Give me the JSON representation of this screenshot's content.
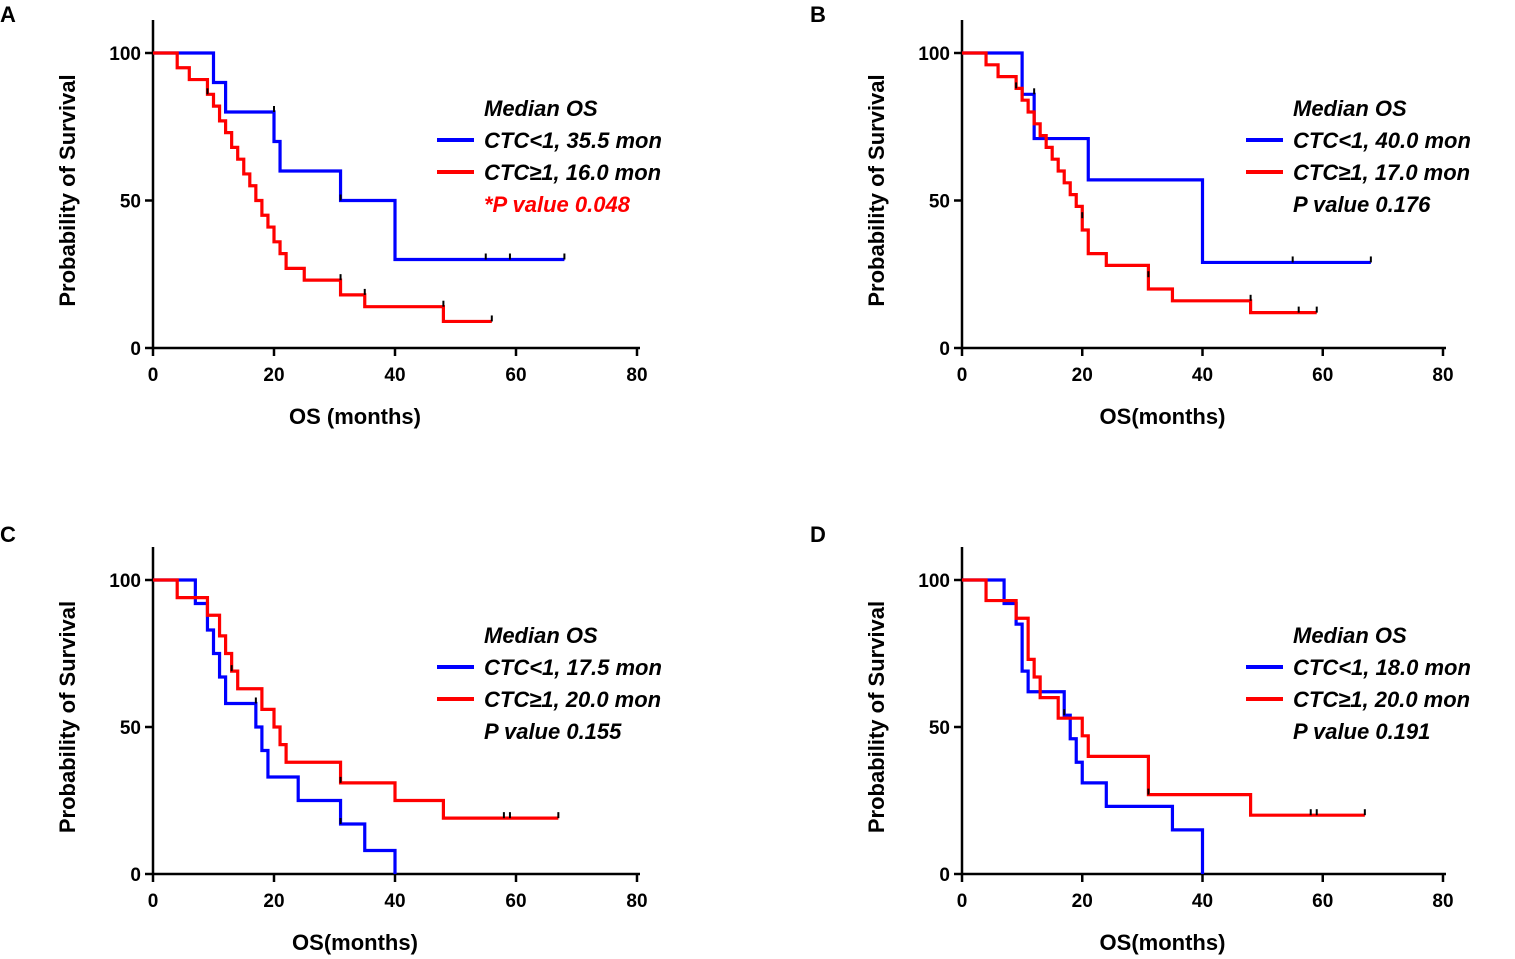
{
  "chart_data": [
    {
      "panel": "A",
      "type": "line",
      "subtype": "kaplan-meier",
      "xlabel": "OS (months)",
      "ylabel": "Probability of Survival",
      "xlim": [
        0,
        80
      ],
      "ylim": [
        0,
        100
      ],
      "x_ticks": [
        "0",
        "20",
        "40",
        "60",
        "80"
      ],
      "y_ticks": [
        "0",
        "50",
        "100"
      ],
      "legend": {
        "title": "Median OS",
        "entries": [
          "CTC<1, 35.5 mon",
          "CTC≥1, 16.0 mon"
        ],
        "p_value": "*P value 0.048",
        "p_value_color": "#ff0000"
      },
      "series": [
        {
          "name": "CTC<1",
          "color": "#0000ff",
          "steps": [
            [
              0,
              100
            ],
            [
              10,
              90
            ],
            [
              12,
              80
            ],
            [
              20,
              70
            ],
            [
              21,
              60
            ],
            [
              31,
              50
            ],
            [
              40,
              30
            ],
            [
              68,
              30
            ]
          ],
          "censor": [
            [
              20,
              80
            ],
            [
              31,
              50
            ],
            [
              55,
              30
            ],
            [
              59,
              30
            ],
            [
              68,
              30
            ]
          ]
        },
        {
          "name": "CTC≥1",
          "color": "#ff0000",
          "steps": [
            [
              0,
              100
            ],
            [
              4,
              95
            ],
            [
              6,
              91
            ],
            [
              9,
              86
            ],
            [
              10,
              82
            ],
            [
              11,
              77
            ],
            [
              12,
              73
            ],
            [
              13,
              68
            ],
            [
              14,
              64
            ],
            [
              15,
              59
            ],
            [
              16,
              55
            ],
            [
              17,
              50
            ],
            [
              18,
              45
            ],
            [
              19,
              41
            ],
            [
              20,
              36
            ],
            [
              21,
              32
            ],
            [
              22,
              27
            ],
            [
              25,
              23
            ],
            [
              31,
              18
            ],
            [
              35,
              14
            ],
            [
              48,
              9
            ],
            [
              56,
              9
            ]
          ],
          "censor": [
            [
              9,
              86
            ],
            [
              31,
              23
            ],
            [
              35,
              18
            ],
            [
              48,
              14
            ],
            [
              56,
              9
            ]
          ]
        }
      ]
    },
    {
      "panel": "B",
      "type": "line",
      "subtype": "kaplan-meier",
      "xlabel": "OS(months)",
      "ylabel": "Probability of Survival",
      "xlim": [
        0,
        80
      ],
      "ylim": [
        0,
        100
      ],
      "x_ticks": [
        "0",
        "20",
        "40",
        "60",
        "80"
      ],
      "y_ticks": [
        "0",
        "50",
        "100"
      ],
      "legend": {
        "title": "Median OS",
        "entries": [
          "CTC<1, 40.0 mon",
          "CTC≥1, 17.0 mon"
        ],
        "p_value": "P value 0.176",
        "p_value_color": "#000000"
      },
      "series": [
        {
          "name": "CTC<1",
          "color": "#0000ff",
          "steps": [
            [
              0,
              100
            ],
            [
              10,
              86
            ],
            [
              12,
              71
            ],
            [
              21,
              57
            ],
            [
              40,
              29
            ],
            [
              68,
              29
            ]
          ],
          "censor": [
            [
              12,
              86
            ],
            [
              55,
              29
            ],
            [
              68,
              29
            ]
          ]
        },
        {
          "name": "CTC≥1",
          "color": "#ff0000",
          "steps": [
            [
              0,
              100
            ],
            [
              4,
              96
            ],
            [
              6,
              92
            ],
            [
              9,
              88
            ],
            [
              10,
              84
            ],
            [
              11,
              80
            ],
            [
              12,
              76
            ],
            [
              13,
              72
            ],
            [
              14,
              68
            ],
            [
              15,
              64
            ],
            [
              16,
              60
            ],
            [
              17,
              56
            ],
            [
              18,
              52
            ],
            [
              19,
              48
            ],
            [
              20,
              40
            ],
            [
              21,
              32
            ],
            [
              24,
              28
            ],
            [
              31,
              20
            ],
            [
              35,
              16
            ],
            [
              48,
              12
            ],
            [
              59,
              12
            ]
          ],
          "censor": [
            [
              9,
              88
            ],
            [
              20,
              44
            ],
            [
              31,
              24
            ],
            [
              48,
              16
            ],
            [
              56,
              12
            ],
            [
              59,
              12
            ]
          ]
        }
      ]
    },
    {
      "panel": "C",
      "type": "line",
      "subtype": "kaplan-meier",
      "xlabel": "OS(months)",
      "ylabel": "Probability of Survival",
      "xlim": [
        0,
        80
      ],
      "ylim": [
        0,
        100
      ],
      "x_ticks": [
        "0",
        "20",
        "40",
        "60",
        "80"
      ],
      "y_ticks": [
        "0",
        "50",
        "100"
      ],
      "legend": {
        "title": "Median OS",
        "entries": [
          "CTC<1, 17.5 mon",
          "CTC≥1, 20.0 mon"
        ],
        "p_value": "P value 0.155",
        "p_value_color": "#000000"
      },
      "series": [
        {
          "name": "CTC<1",
          "color": "#0000ff",
          "steps": [
            [
              0,
              100
            ],
            [
              7,
              92
            ],
            [
              9,
              83
            ],
            [
              10,
              75
            ],
            [
              11,
              67
            ],
            [
              12,
              58
            ],
            [
              17,
              50
            ],
            [
              18,
              42
            ],
            [
              19,
              33
            ],
            [
              24,
              25
            ],
            [
              31,
              17
            ],
            [
              35,
              8
            ],
            [
              40,
              0
            ]
          ],
          "censor": [
            [
              17,
              58
            ],
            [
              31,
              17
            ]
          ]
        },
        {
          "name": "CTC≥1",
          "color": "#ff0000",
          "steps": [
            [
              0,
              100
            ],
            [
              4,
              94
            ],
            [
              9,
              88
            ],
            [
              11,
              81
            ],
            [
              12,
              75
            ],
            [
              13,
              69
            ],
            [
              14,
              63
            ],
            [
              18,
              56
            ],
            [
              20,
              50
            ],
            [
              21,
              44
            ],
            [
              22,
              38
            ],
            [
              31,
              31
            ],
            [
              40,
              25
            ],
            [
              48,
              19
            ],
            [
              67,
              19
            ]
          ],
          "censor": [
            [
              13,
              69
            ],
            [
              31,
              31
            ],
            [
              58,
              19
            ],
            [
              59,
              19
            ],
            [
              67,
              19
            ]
          ]
        }
      ]
    },
    {
      "panel": "D",
      "type": "line",
      "subtype": "kaplan-meier",
      "xlabel": "OS(months)",
      "ylabel": "Probability of Survival",
      "xlim": [
        0,
        80
      ],
      "ylim": [
        0,
        100
      ],
      "x_ticks": [
        "0",
        "20",
        "40",
        "60",
        "80"
      ],
      "y_ticks": [
        "0",
        "50",
        "100"
      ],
      "legend": {
        "title": "Median OS",
        "entries": [
          "CTC<1, 18.0 mon",
          "CTC≥1, 20.0 mon"
        ],
        "p_value": "P value 0.191",
        "p_value_color": "#000000"
      },
      "series": [
        {
          "name": "CTC<1",
          "color": "#0000ff",
          "steps": [
            [
              0,
              100
            ],
            [
              7,
              92
            ],
            [
              9,
              85
            ],
            [
              10,
              69
            ],
            [
              11,
              62
            ],
            [
              17,
              54
            ],
            [
              18,
              46
            ],
            [
              19,
              38
            ],
            [
              20,
              31
            ],
            [
              24,
              23
            ],
            [
              35,
              15
            ],
            [
              40,
              0
            ]
          ],
          "censor": [
            [
              17,
              54
            ]
          ]
        },
        {
          "name": "CTC≥1",
          "color": "#ff0000",
          "steps": [
            [
              0,
              100
            ],
            [
              4,
              93
            ],
            [
              9,
              87
            ],
            [
              11,
              73
            ],
            [
              12,
              67
            ],
            [
              13,
              60
            ],
            [
              16,
              53
            ],
            [
              20,
              47
            ],
            [
              21,
              40
            ],
            [
              31,
              27
            ],
            [
              48,
              20
            ],
            [
              67,
              20
            ]
          ],
          "censor": [
            [
              31,
              27
            ],
            [
              58,
              20
            ],
            [
              59,
              20
            ],
            [
              67,
              20
            ]
          ]
        }
      ]
    }
  ]
}
